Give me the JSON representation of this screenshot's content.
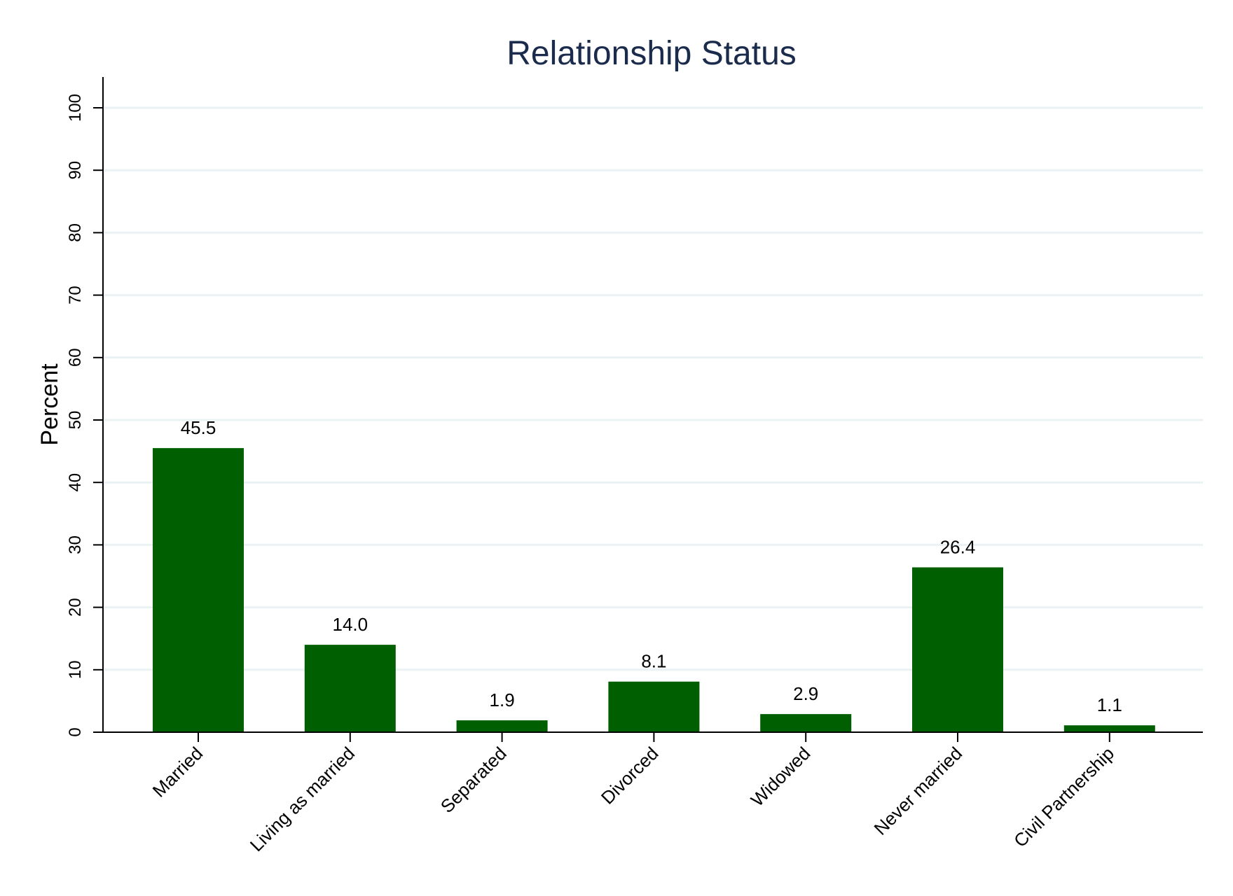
{
  "chart_data": {
    "type": "bar",
    "title": "Relationship Status",
    "xlabel": "",
    "ylabel": "Percent",
    "categories": [
      "Married",
      "Living as married",
      "Separated",
      "Divorced",
      "Widowed",
      "Never married",
      "Civil Partnership"
    ],
    "values": [
      45.5,
      14.0,
      1.9,
      8.1,
      2.9,
      26.4,
      1.1
    ],
    "value_labels": [
      "45.5",
      "14.0",
      "1.9",
      "8.1",
      "2.9",
      "26.4",
      "1.1"
    ],
    "ylim": [
      0,
      105
    ],
    "yticks": [
      0,
      10,
      20,
      30,
      40,
      50,
      60,
      70,
      80,
      90,
      100
    ],
    "grid": true,
    "bar_color": "#005f00",
    "grid_color": "#eaf2f3"
  }
}
